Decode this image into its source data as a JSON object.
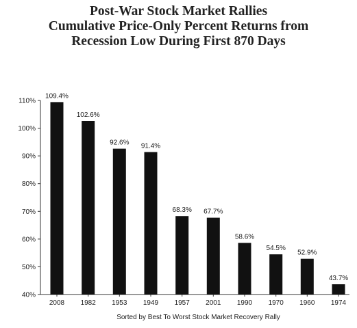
{
  "chart_data": {
    "type": "bar",
    "title": [
      "Post-War Stock Market Rallies",
      "Cumulative Price-Only Percent Returns from",
      "Recession Low During First 870 Days"
    ],
    "xlabel": "Sorted by Best To Worst Stock Market Recovery Rally",
    "ylabel": "",
    "ylim": [
      40,
      110
    ],
    "y_ticks": [
      "40%",
      "50%",
      "60%",
      "70%",
      "80%",
      "90%",
      "100%",
      "110%"
    ],
    "y_tick_values": [
      40,
      50,
      60,
      70,
      80,
      90,
      100,
      110
    ],
    "categories": [
      "2008",
      "1982",
      "1953",
      "1949",
      "1957",
      "2001",
      "1990",
      "1970",
      "1960",
      "1974"
    ],
    "values": [
      109.4,
      102.6,
      92.6,
      91.4,
      68.3,
      67.7,
      58.6,
      54.5,
      52.9,
      43.7
    ],
    "data_labels": [
      "109.4%",
      "102.6%",
      "92.6%",
      "91.4%",
      "68.3%",
      "67.7%",
      "58.6%",
      "54.5%",
      "52.9%",
      "43.7%"
    ],
    "bar_color": "#111111",
    "grid": false,
    "legend": "none"
  }
}
